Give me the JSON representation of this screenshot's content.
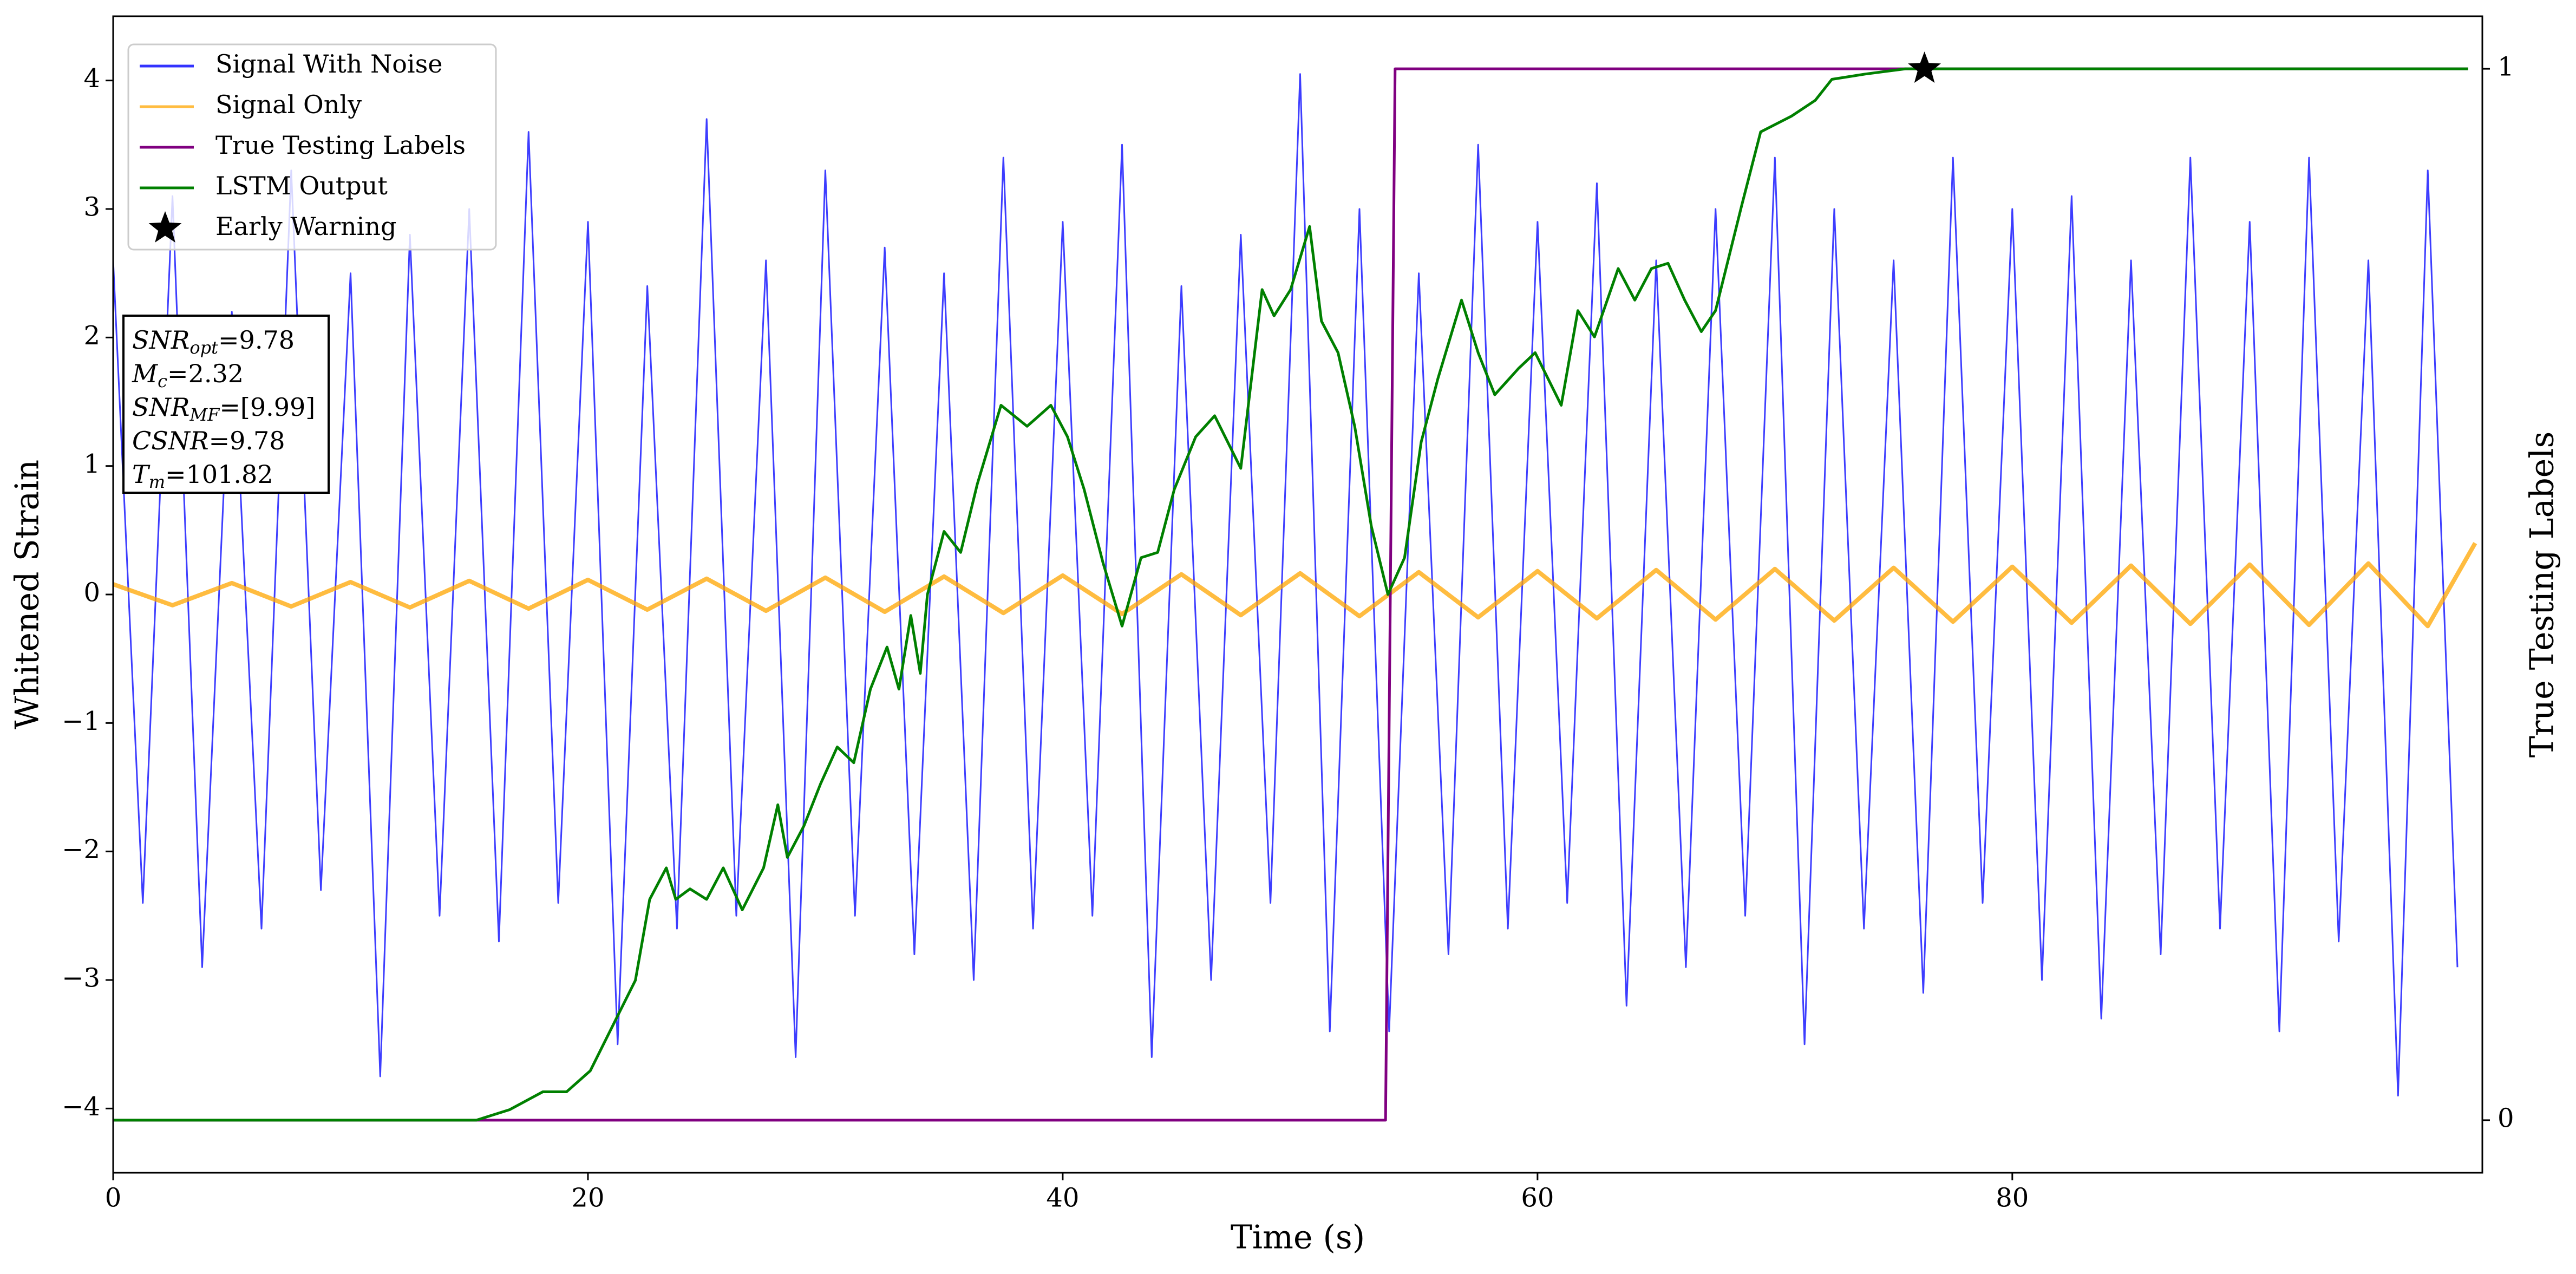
{
  "chart_data": {
    "type": "line",
    "xlabel": "Time (s)",
    "ylabel": "Whitened Strain",
    "y2label": "True Testing Labels",
    "xlim": [
      0,
      99.8
    ],
    "xticks": [
      0,
      20,
      40,
      60,
      80
    ],
    "ylim": [
      -4.5,
      4.5
    ],
    "yticks": [
      {
        "value": -4,
        "label": "−4"
      },
      {
        "value": -3,
        "label": "−3"
      },
      {
        "value": -2,
        "label": "−2"
      },
      {
        "value": -1,
        "label": "−1"
      },
      0,
      1,
      2,
      3,
      4
    ],
    "y2lim": [
      -0.05,
      1.05
    ],
    "y2ticks": [
      0,
      1
    ],
    "legend": "upper left",
    "series": [
      {
        "name": "Signal With Noise",
        "color": "#3333ff",
        "x": [
          0,
          1.25,
          2.5,
          3.75,
          5,
          6.25,
          7.5,
          8.75,
          10,
          11.25,
          12.5,
          13.75,
          15,
          16.25,
          17.5,
          18.75,
          20,
          21.25,
          22.5,
          23.75,
          25,
          26.25,
          27.5,
          28.75,
          30,
          31.25,
          32.5,
          33.75,
          35,
          36.25,
          37.5,
          38.75,
          40,
          41.25,
          42.5,
          43.75,
          45,
          46.25,
          47.5,
          48.75,
          50,
          51.25,
          52.5,
          53.75,
          55,
          56.25,
          57.5,
          58.75,
          60,
          61.25,
          62.5,
          63.75,
          65,
          66.25,
          67.5,
          68.75,
          70,
          71.25,
          72.5,
          73.75,
          75,
          76.25,
          77.5,
          78.75,
          80,
          81.25,
          82.5,
          83.75,
          85,
          86.25,
          87.5,
          88.75,
          90,
          91.25,
          92.5,
          93.75,
          95,
          96.25,
          97.5,
          98.75
        ],
        "values": [
          2.6,
          -2.4,
          3.1,
          -2.9,
          2.2,
          -2.6,
          3.3,
          -2.3,
          2.5,
          -3.75,
          2.8,
          -2.5,
          3.0,
          -2.7,
          3.6,
          -2.4,
          2.9,
          -3.5,
          2.4,
          -2.6,
          3.7,
          -2.5,
          2.6,
          -3.6,
          3.3,
          -2.5,
          2.7,
          -2.8,
          2.5,
          -3.0,
          3.4,
          -2.6,
          2.9,
          -2.5,
          3.5,
          -3.6,
          2.4,
          -3.0,
          2.8,
          -2.4,
          4.05,
          -3.4,
          3.0,
          -3.4,
          2.5,
          -2.8,
          3.5,
          -2.6,
          2.9,
          -2.4,
          3.2,
          -3.2,
          2.6,
          -2.9,
          3.0,
          -2.5,
          3.4,
          -3.5,
          3.0,
          -2.6,
          2.6,
          -3.1,
          3.4,
          -2.4,
          3.0,
          -3.0,
          3.1,
          -3.3,
          2.6,
          -2.8,
          3.4,
          -2.6,
          2.9,
          -3.4,
          3.4,
          -2.7,
          2.6,
          -3.9,
          3.3,
          -2.9
        ]
      },
      {
        "name": "Signal Only",
        "color": "#ffa500",
        "x": [
          0,
          2.5,
          5,
          7.5,
          10,
          12.5,
          15,
          17.5,
          20,
          22.5,
          25,
          27.5,
          30,
          32.5,
          35,
          37.5,
          40,
          42.5,
          45,
          47.5,
          50,
          52.5,
          55,
          57.5,
          60,
          62.5,
          65,
          67.5,
          70,
          72.5,
          75,
          77.5,
          80,
          82.5,
          85,
          87.5,
          90,
          92.5,
          95,
          97.5,
          99.5
        ],
        "values": [
          0.08,
          -0.084,
          0.089,
          -0.093,
          0.097,
          -0.101,
          0.106,
          -0.11,
          0.114,
          -0.118,
          0.123,
          -0.127,
          0.131,
          -0.135,
          0.14,
          -0.144,
          0.148,
          -0.152,
          0.157,
          -0.161,
          0.165,
          -0.169,
          0.174,
          -0.178,
          0.182,
          -0.186,
          0.191,
          -0.195,
          0.199,
          -0.203,
          0.208,
          -0.212,
          0.216,
          -0.22,
          0.225,
          -0.229,
          0.233,
          -0.237,
          0.242,
          -0.246,
          0.4
        ]
      },
      {
        "name": "True Testing Labels",
        "color": "#800080",
        "axis": "y2",
        "x": [
          0,
          53.6,
          54.0,
          99.2
        ],
        "values": [
          0,
          0,
          1,
          1
        ]
      },
      {
        "name": "LSTM Output",
        "color": "#008000",
        "axis": "y2",
        "x": [
          0,
          15.3,
          16.7,
          18.1,
          19.1,
          20.1,
          21.2,
          22.0,
          22.6,
          23.3,
          23.7,
          24.3,
          25.0,
          25.7,
          26.5,
          27.4,
          28.0,
          28.4,
          29.1,
          29.8,
          30.5,
          31.2,
          31.9,
          32.6,
          33.1,
          33.6,
          34.0,
          34.3,
          35.0,
          35.7,
          36.4,
          37.4,
          38.5,
          39.5,
          40.2,
          40.9,
          41.7,
          42.5,
          43.3,
          44.0,
          44.7,
          45.6,
          46.4,
          47.5,
          48.4,
          48.9,
          49.6,
          50.4,
          50.9,
          51.6,
          52.3,
          53.0,
          53.7,
          54.4,
          55.1,
          55.8,
          56.8,
          57.5,
          58.2,
          59.2,
          59.9,
          61.0,
          61.7,
          62.4,
          63.4,
          64.1,
          64.8,
          65.5,
          66.2,
          66.9,
          67.5,
          68.6,
          69.4,
          70.7,
          71.7,
          72.4,
          73.8,
          75.5,
          99.2
        ],
        "values": [
          0,
          0,
          0.01,
          0.027,
          0.027,
          0.047,
          0.097,
          0.133,
          0.21,
          0.24,
          0.21,
          0.22,
          0.21,
          0.24,
          0.2,
          0.24,
          0.3,
          0.25,
          0.28,
          0.32,
          0.355,
          0.34,
          0.41,
          0.45,
          0.41,
          0.48,
          0.425,
          0.5,
          0.56,
          0.54,
          0.605,
          0.68,
          0.66,
          0.68,
          0.65,
          0.6,
          0.53,
          0.47,
          0.535,
          0.54,
          0.6,
          0.65,
          0.67,
          0.62,
          0.79,
          0.765,
          0.79,
          0.85,
          0.76,
          0.73,
          0.66,
          0.565,
          0.5,
          0.535,
          0.645,
          0.705,
          0.78,
          0.73,
          0.69,
          0.715,
          0.73,
          0.68,
          0.77,
          0.745,
          0.81,
          0.78,
          0.81,
          0.815,
          0.78,
          0.75,
          0.77,
          0.87,
          0.94,
          0.955,
          0.97,
          0.99,
          0.995,
          1.0,
          1.0
        ]
      },
      {
        "name": "Early Warning",
        "color": "#000000",
        "axis": "y2",
        "marker": "star",
        "x": [
          76.3
        ],
        "values": [
          1.0
        ]
      }
    ],
    "annotations": [
      {
        "text": "SNR",
        "sub": "opt",
        "value": "=9.78"
      },
      {
        "text": "M",
        "sub": "c",
        "value": "=2.32"
      },
      {
        "text": "SNR",
        "sub": "MF",
        "value": "=[9.99]"
      },
      {
        "text": "CSNR",
        "value": "=9.78"
      },
      {
        "text": "T",
        "sub": "m",
        "value": "=101.82"
      }
    ]
  }
}
